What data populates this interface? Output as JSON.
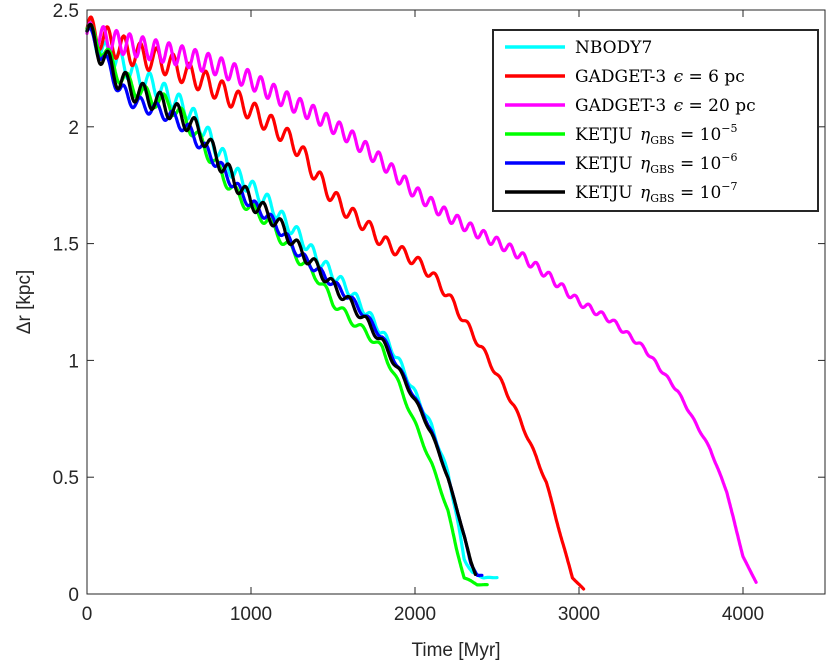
{
  "chart_data": {
    "type": "line",
    "xlabel": "Time [Myr]",
    "ylabel": "Δr [kpc]",
    "xlim": [
      0,
      4500
    ],
    "ylim": [
      0,
      2.5
    ],
    "xticks": [
      0,
      1000,
      2000,
      3000,
      4000
    ],
    "yticks": [
      0,
      0.5,
      1,
      1.5,
      2,
      2.5
    ],
    "xtick_labels": [
      "0",
      "1000",
      "2000",
      "3000",
      "4000"
    ],
    "ytick_labels": [
      "0",
      "0.5",
      "1",
      "1.5",
      "2",
      "2.5"
    ],
    "grid": false,
    "legend_position": "top-right",
    "series": [
      {
        "name": "NBODY7",
        "color": "#00ffff",
        "legend": {
          "base": "NBODY7",
          "sub": "",
          "sup": ""
        },
        "oscillation": {
          "amplitude": [
            0.05,
            0.01
          ],
          "period": 90
        },
        "points": [
          [
            0,
            2.42
          ],
          [
            100,
            2.32
          ],
          [
            200,
            2.28
          ],
          [
            300,
            2.22
          ],
          [
            400,
            2.18
          ],
          [
            500,
            2.13
          ],
          [
            600,
            2.08
          ],
          [
            700,
            2.0
          ],
          [
            800,
            1.9
          ],
          [
            900,
            1.8
          ],
          [
            1000,
            1.74
          ],
          [
            1100,
            1.68
          ],
          [
            1200,
            1.6
          ],
          [
            1300,
            1.53
          ],
          [
            1400,
            1.44
          ],
          [
            1500,
            1.37
          ],
          [
            1600,
            1.3
          ],
          [
            1700,
            1.21
          ],
          [
            1800,
            1.12
          ],
          [
            1900,
            1.0
          ],
          [
            2000,
            0.86
          ],
          [
            2100,
            0.72
          ],
          [
            2200,
            0.52
          ],
          [
            2250,
            0.35
          ],
          [
            2300,
            0.15
          ],
          [
            2350,
            0.09
          ],
          [
            2420,
            0.07
          ],
          [
            2500,
            0.07
          ]
        ]
      },
      {
        "name": "GADGET-3 ε = 6 pc",
        "color": "#ff0000",
        "legend": {
          "base": "GADGET-3 ",
          "math": "ϵ",
          "rest": " = 6 pc",
          "sub": "",
          "sup": ""
        },
        "oscillation": {
          "amplitude": [
            0.06,
            0.01
          ],
          "period": 100
        },
        "points": [
          [
            0,
            2.42
          ],
          [
            100,
            2.38
          ],
          [
            200,
            2.34
          ],
          [
            300,
            2.31
          ],
          [
            400,
            2.29
          ],
          [
            500,
            2.27
          ],
          [
            600,
            2.23
          ],
          [
            700,
            2.2
          ],
          [
            800,
            2.16
          ],
          [
            900,
            2.12
          ],
          [
            1000,
            2.07
          ],
          [
            1100,
            2.02
          ],
          [
            1200,
            1.97
          ],
          [
            1300,
            1.9
          ],
          [
            1400,
            1.79
          ],
          [
            1500,
            1.7
          ],
          [
            1600,
            1.63
          ],
          [
            1700,
            1.58
          ],
          [
            1800,
            1.51
          ],
          [
            1900,
            1.47
          ],
          [
            2000,
            1.43
          ],
          [
            2100,
            1.37
          ],
          [
            2200,
            1.28
          ],
          [
            2300,
            1.17
          ],
          [
            2400,
            1.06
          ],
          [
            2500,
            0.94
          ],
          [
            2600,
            0.81
          ],
          [
            2700,
            0.65
          ],
          [
            2800,
            0.48
          ],
          [
            2900,
            0.22
          ],
          [
            2960,
            0.07
          ],
          [
            3030,
            0.02
          ]
        ]
      },
      {
        "name": "GADGET-3 ε = 20 pc",
        "color": "#ff00ff",
        "legend": {
          "base": "GADGET-3 ",
          "math": "ϵ",
          "rest": " = 20 pc",
          "sub": "",
          "sup": ""
        },
        "oscillation": {
          "amplitude": [
            0.05,
            0.006
          ],
          "period": 80
        },
        "points": [
          [
            0,
            2.4
          ],
          [
            200,
            2.36
          ],
          [
            400,
            2.33
          ],
          [
            600,
            2.3
          ],
          [
            800,
            2.26
          ],
          [
            1000,
            2.2
          ],
          [
            1200,
            2.12
          ],
          [
            1400,
            2.05
          ],
          [
            1600,
            1.96
          ],
          [
            1800,
            1.85
          ],
          [
            2000,
            1.72
          ],
          [
            2200,
            1.62
          ],
          [
            2400,
            1.54
          ],
          [
            2600,
            1.47
          ],
          [
            2800,
            1.37
          ],
          [
            3000,
            1.25
          ],
          [
            3200,
            1.17
          ],
          [
            3400,
            1.05
          ],
          [
            3600,
            0.87
          ],
          [
            3800,
            0.62
          ],
          [
            3900,
            0.44
          ],
          [
            4000,
            0.16
          ],
          [
            4080,
            0.05
          ]
        ]
      },
      {
        "name": "KETJU η_GBS = 10^-5",
        "color": "#00ff00",
        "legend": {
          "base": "KETJU ",
          "math": "η",
          "sub": "GBS",
          "rest": " = 10",
          "sup": "−5"
        },
        "oscillation": {
          "amplitude": [
            0.04,
            0.008
          ],
          "period": 110
        },
        "points": [
          [
            0,
            2.42
          ],
          [
            100,
            2.33
          ],
          [
            200,
            2.22
          ],
          [
            300,
            2.16
          ],
          [
            400,
            2.12
          ],
          [
            500,
            2.1
          ],
          [
            600,
            2.03
          ],
          [
            700,
            1.93
          ],
          [
            800,
            1.82
          ],
          [
            900,
            1.72
          ],
          [
            1000,
            1.65
          ],
          [
            1100,
            1.6
          ],
          [
            1200,
            1.51
          ],
          [
            1300,
            1.43
          ],
          [
            1400,
            1.36
          ],
          [
            1500,
            1.25
          ],
          [
            1600,
            1.18
          ],
          [
            1700,
            1.12
          ],
          [
            1800,
            1.05
          ],
          [
            1900,
            0.9
          ],
          [
            2000,
            0.73
          ],
          [
            2100,
            0.56
          ],
          [
            2200,
            0.36
          ],
          [
            2250,
            0.2
          ],
          [
            2300,
            0.07
          ],
          [
            2380,
            0.04
          ],
          [
            2440,
            0.04
          ]
        ]
      },
      {
        "name": "KETJU η_GBS = 10^-6",
        "color": "#0000ff",
        "legend": {
          "base": "KETJU ",
          "math": "η",
          "sub": "GBS",
          "rest": " = 10",
          "sup": "−6"
        },
        "oscillation": {
          "amplitude": [
            0.035,
            0.008
          ],
          "period": 100
        },
        "points": [
          [
            0,
            2.41
          ],
          [
            100,
            2.3
          ],
          [
            200,
            2.16
          ],
          [
            300,
            2.1
          ],
          [
            400,
            2.08
          ],
          [
            500,
            2.05
          ],
          [
            600,
            2.0
          ],
          [
            700,
            1.92
          ],
          [
            800,
            1.84
          ],
          [
            900,
            1.75
          ],
          [
            1000,
            1.67
          ],
          [
            1100,
            1.62
          ],
          [
            1200,
            1.54
          ],
          [
            1300,
            1.45
          ],
          [
            1400,
            1.39
          ],
          [
            1500,
            1.33
          ],
          [
            1600,
            1.27
          ],
          [
            1700,
            1.19
          ],
          [
            1800,
            1.1
          ],
          [
            1900,
            0.97
          ],
          [
            2000,
            0.84
          ],
          [
            2100,
            0.7
          ],
          [
            2200,
            0.5
          ],
          [
            2300,
            0.25
          ],
          [
            2340,
            0.13
          ],
          [
            2380,
            0.08
          ],
          [
            2410,
            0.08
          ]
        ]
      },
      {
        "name": "KETJU η_GBS = 10^-7",
        "color": "#000000",
        "legend": {
          "base": "KETJU ",
          "math": "η",
          "sub": "GBS",
          "rest": " = 10",
          "sup": "−7"
        },
        "oscillation": {
          "amplitude": [
            0.055,
            0.008
          ],
          "period": 105
        },
        "points": [
          [
            0,
            2.41
          ],
          [
            100,
            2.3
          ],
          [
            200,
            2.2
          ],
          [
            300,
            2.15
          ],
          [
            400,
            2.12
          ],
          [
            500,
            2.08
          ],
          [
            600,
            2.03
          ],
          [
            700,
            1.97
          ],
          [
            800,
            1.86
          ],
          [
            900,
            1.77
          ],
          [
            1000,
            1.68
          ],
          [
            1100,
            1.63
          ],
          [
            1200,
            1.56
          ],
          [
            1300,
            1.47
          ],
          [
            1400,
            1.4
          ],
          [
            1500,
            1.32
          ],
          [
            1600,
            1.25
          ],
          [
            1700,
            1.17
          ],
          [
            1800,
            1.08
          ],
          [
            1900,
            0.96
          ],
          [
            2000,
            0.83
          ],
          [
            2100,
            0.69
          ],
          [
            2200,
            0.5
          ],
          [
            2300,
            0.25
          ],
          [
            2340,
            0.14
          ],
          [
            2370,
            0.08
          ]
        ]
      }
    ]
  }
}
